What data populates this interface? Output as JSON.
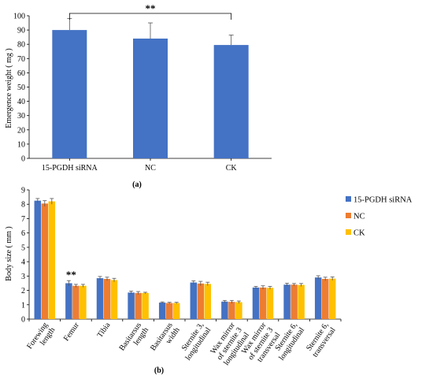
{
  "chart_data": [
    {
      "type": "bar",
      "panel_label": "(a)",
      "categories": [
        "15-PGDH siRNA",
        "NC",
        "CK"
      ],
      "values": [
        90,
        84,
        79.5
      ],
      "errors": [
        8,
        11,
        7
      ],
      "ylabel": "Emergence weight ( mg )",
      "ylim": [
        0,
        100
      ],
      "yticks": [
        "0",
        "10",
        "20",
        "30",
        "40",
        "50",
        "60",
        "70",
        "80",
        "90",
        "100"
      ],
      "color": "#4472C4",
      "annotation": {
        "text": "**",
        "from": "15-PGDH siRNA",
        "to": "CK"
      }
    },
    {
      "type": "bar",
      "panel_label": "(b)",
      "categories": [
        [
          "Forewing",
          "length"
        ],
        [
          "Femur"
        ],
        [
          "Tibia"
        ],
        [
          "Basitarsus",
          "length"
        ],
        [
          "Basitarsus",
          "width"
        ],
        [
          "Sternite 3,",
          "longitudinal"
        ],
        [
          "Wax mirror",
          "of sternite 3",
          "longitudinal"
        ],
        [
          "Wax mirror",
          "of sternite 3",
          "transversal"
        ],
        [
          "Sternite 6,",
          "longitudinal"
        ],
        [
          "Sternite 6,",
          "transversal"
        ]
      ],
      "series": [
        {
          "name": "15-PGDH siRNA",
          "color": "#4472C4",
          "values": [
            8.25,
            2.5,
            2.85,
            1.85,
            1.15,
            2.55,
            1.22,
            2.2,
            2.4,
            2.9
          ],
          "errors": [
            0.15,
            0.18,
            0.12,
            0.1,
            0.05,
            0.12,
            0.08,
            0.08,
            0.1,
            0.12
          ]
        },
        {
          "name": "NC",
          "color": "#ED7D31",
          "values": [
            8.05,
            2.32,
            2.8,
            1.82,
            1.12,
            2.48,
            1.2,
            2.2,
            2.4,
            2.8
          ],
          "errors": [
            0.2,
            0.1,
            0.12,
            0.1,
            0.05,
            0.15,
            0.1,
            0.12,
            0.08,
            0.12
          ]
        },
        {
          "name": "CK",
          "color": "#FFC000",
          "values": [
            8.2,
            2.32,
            2.72,
            1.82,
            1.12,
            2.45,
            1.18,
            2.18,
            2.38,
            2.82
          ],
          "errors": [
            0.2,
            0.1,
            0.12,
            0.05,
            0.05,
            0.12,
            0.08,
            0.1,
            0.1,
            0.12
          ]
        }
      ],
      "ylabel": "Body size ( mm )",
      "ylim": [
        0,
        9
      ],
      "yticks": [
        "0",
        "1",
        "2",
        "3",
        "4",
        "5",
        "6",
        "7",
        "8",
        "9"
      ],
      "legend_position": "top-right",
      "annotation": {
        "text": "**",
        "category_index": 1
      }
    }
  ]
}
